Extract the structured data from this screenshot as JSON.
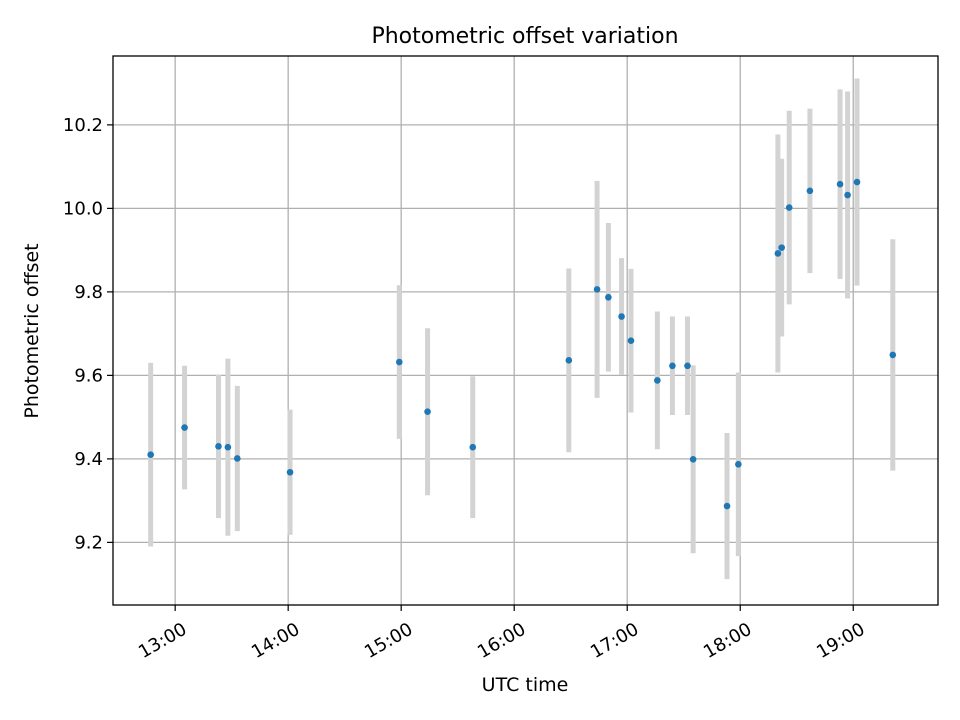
{
  "chart_data": {
    "type": "scatter",
    "title": "Photometric offset variation",
    "xlabel": "UTC time",
    "ylabel": "Photometric offset",
    "xlim": [
      "12:27",
      "19:45"
    ],
    "ylim": [
      9.05,
      10.365
    ],
    "x_ticks": [
      "13:00",
      "14:00",
      "15:00",
      "16:00",
      "17:00",
      "18:00",
      "19:00"
    ],
    "y_ticks": [
      "9.2",
      "9.4",
      "9.6",
      "9.8",
      "10.0",
      "10.2"
    ],
    "grid": true,
    "colors": {
      "point": "#1f77b4",
      "errorbar": "#d3d3d3",
      "grid": "#b0b0b0"
    },
    "points": [
      {
        "x": "12:47",
        "y": 9.41,
        "err": 0.22
      },
      {
        "x": "13:05",
        "y": 9.475,
        "err": 0.148
      },
      {
        "x": "13:23",
        "y": 9.43,
        "err": 0.172
      },
      {
        "x": "13:28",
        "y": 9.428,
        "err": 0.212
      },
      {
        "x": "13:33",
        "y": 9.401,
        "err": 0.174
      },
      {
        "x": "14:01",
        "y": 9.368,
        "err": 0.15
      },
      {
        "x": "14:59",
        "y": 9.632,
        "err": 0.184
      },
      {
        "x": "15:14",
        "y": 9.513,
        "err": 0.2
      },
      {
        "x": "15:38",
        "y": 9.428,
        "err": 0.17
      },
      {
        "x": "16:29",
        "y": 9.636,
        "err": 0.22
      },
      {
        "x": "16:44",
        "y": 9.806,
        "err": 0.26
      },
      {
        "x": "16:50",
        "y": 9.787,
        "err": 0.178
      },
      {
        "x": "16:57",
        "y": 9.741,
        "err": 0.14
      },
      {
        "x": "17:02",
        "y": 9.683,
        "err": 0.172
      },
      {
        "x": "17:16",
        "y": 9.588,
        "err": 0.165
      },
      {
        "x": "17:24",
        "y": 9.623,
        "err": 0.118
      },
      {
        "x": "17:32",
        "y": 9.623,
        "err": 0.118
      },
      {
        "x": "17:35",
        "y": 9.399,
        "err": 0.225
      },
      {
        "x": "17:53",
        "y": 9.287,
        "err": 0.175
      },
      {
        "x": "17:59",
        "y": 9.387,
        "err": 0.22
      },
      {
        "x": "18:20",
        "y": 9.892,
        "err": 0.285
      },
      {
        "x": "18:22",
        "y": 9.906,
        "err": 0.213
      },
      {
        "x": "18:26",
        "y": 10.002,
        "err": 0.232
      },
      {
        "x": "18:37",
        "y": 10.042,
        "err": 0.197
      },
      {
        "x": "18:53",
        "y": 10.058,
        "err": 0.227
      },
      {
        "x": "18:57",
        "y": 10.032,
        "err": 0.248
      },
      {
        "x": "19:02",
        "y": 10.063,
        "err": 0.248
      },
      {
        "x": "19:21",
        "y": 9.649,
        "err": 0.277
      }
    ]
  }
}
